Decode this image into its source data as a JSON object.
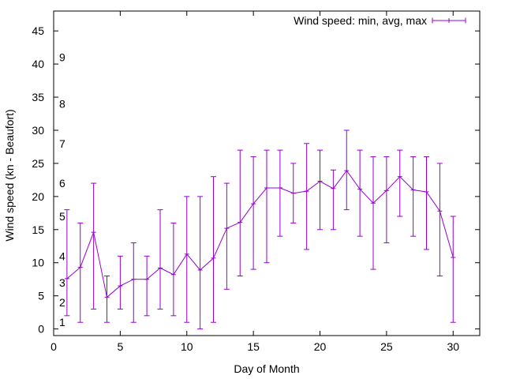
{
  "chart_data": {
    "type": "line",
    "title": "",
    "xlabel": "Day of Month",
    "ylabel": "Wind speed (kn - Beaufort)",
    "xlim": [
      0,
      32
    ],
    "ylim": [
      -1,
      48
    ],
    "xticks": [
      0,
      5,
      10,
      15,
      20,
      25,
      30
    ],
    "yticks": [
      0,
      5,
      10,
      15,
      20,
      25,
      30,
      35,
      40,
      45
    ],
    "beaufort_labels": [
      {
        "label": "1",
        "y": 1
      },
      {
        "label": "2",
        "y": 4
      },
      {
        "label": "3",
        "y": 7
      },
      {
        "label": "4",
        "y": 11
      },
      {
        "label": "5",
        "y": 17
      },
      {
        "label": "6",
        "y": 22
      },
      {
        "label": "7",
        "y": 28
      },
      {
        "label": "8",
        "y": 34
      },
      {
        "label": "9",
        "y": 41
      }
    ],
    "grid": false,
    "legend_position": "top-right",
    "series": [
      {
        "name": "Wind speed: min, avg, max",
        "color": "#9400d3",
        "points": [
          {
            "x": 1,
            "min": 2,
            "avg": 7.6,
            "max": 18
          },
          {
            "x": 2,
            "min": 1,
            "avg": 9.3,
            "max": 16
          },
          {
            "x": 3,
            "min": 3,
            "avg": 14.6,
            "max": 22
          },
          {
            "x": 4,
            "min": 1,
            "avg": 4.8,
            "max": 8
          },
          {
            "x": 5,
            "min": 3,
            "avg": 6.5,
            "max": 11
          },
          {
            "x": 6,
            "min": 1,
            "avg": 7.5,
            "max": 13
          },
          {
            "x": 7,
            "min": 2,
            "avg": 7.5,
            "max": 11
          },
          {
            "x": 8,
            "min": 3,
            "avg": 9.2,
            "max": 18
          },
          {
            "x": 9,
            "min": 2,
            "avg": 8.2,
            "max": 16
          },
          {
            "x": 10,
            "min": 1,
            "avg": 11.3,
            "max": 20
          },
          {
            "x": 11,
            "min": 0,
            "avg": 8.9,
            "max": 20
          },
          {
            "x": 12,
            "min": 1,
            "avg": 10.7,
            "max": 23
          },
          {
            "x": 13,
            "min": 6,
            "avg": 15.2,
            "max": 22
          },
          {
            "x": 14,
            "min": 8,
            "avg": 16.1,
            "max": 27
          },
          {
            "x": 15,
            "min": 9,
            "avg": 18.9,
            "max": 26
          },
          {
            "x": 16,
            "min": 10,
            "avg": 21.3,
            "max": 27
          },
          {
            "x": 17,
            "min": 14,
            "avg": 21.3,
            "max": 27
          },
          {
            "x": 18,
            "min": 16,
            "avg": 20.5,
            "max": 25
          },
          {
            "x": 19,
            "min": 12,
            "avg": 20.8,
            "max": 28
          },
          {
            "x": 20,
            "min": 15,
            "avg": 22.3,
            "max": 27
          },
          {
            "x": 21,
            "min": 15,
            "avg": 21.2,
            "max": 24
          },
          {
            "x": 22,
            "min": 18,
            "avg": 23.9,
            "max": 30
          },
          {
            "x": 23,
            "min": 14,
            "avg": 21.1,
            "max": 27
          },
          {
            "x": 24,
            "min": 9,
            "avg": 19.0,
            "max": 26
          },
          {
            "x": 25,
            "min": 13,
            "avg": 20.9,
            "max": 26
          },
          {
            "x": 26,
            "min": 17,
            "avg": 23.0,
            "max": 27
          },
          {
            "x": 27,
            "min": 14,
            "avg": 21.0,
            "max": 26
          },
          {
            "x": 28,
            "min": 12,
            "avg": 20.7,
            "max": 26
          },
          {
            "x": 29,
            "min": 8,
            "avg": 17.8,
            "max": 25
          },
          {
            "x": 30,
            "min": 1,
            "avg": 10.8,
            "max": 17
          }
        ]
      }
    ]
  }
}
